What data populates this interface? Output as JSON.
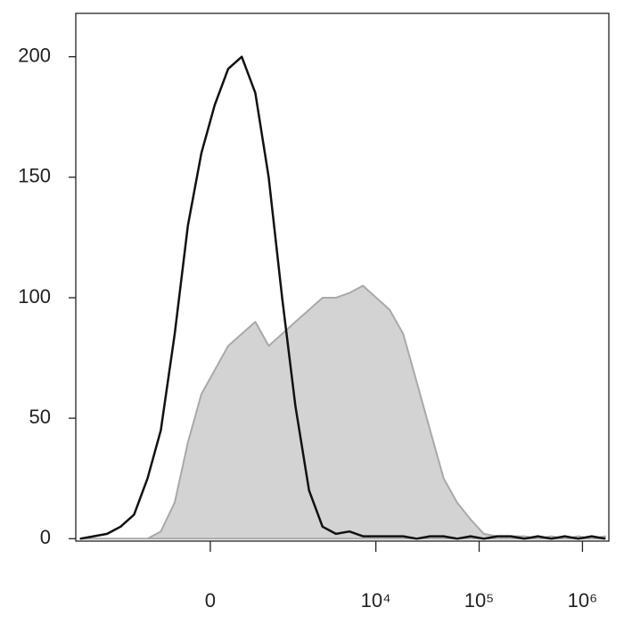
{
  "chart_data": {
    "type": "histogram-overlay",
    "x": [
      -4530,
      -3350,
      -2470,
      -1810,
      -1320,
      -950,
      -670,
      -440,
      -260,
      -100,
      50,
      205,
      380,
      590,
      850,
      1190,
      1630,
      2230,
      3030,
      4100,
      5540,
      7490,
      10100,
      13600,
      18400,
      24900,
      33500,
      45300,
      61200,
      82600,
      111000,
      150000,
      203000,
      274000,
      370000,
      500000,
      674000,
      910000,
      1230000,
      1660000
    ],
    "series": [
      {
        "color": "#a9a9a9",
        "fill": "#d3d3d3",
        "values": [
          0,
          0,
          0,
          0,
          0,
          0,
          3,
          15,
          40,
          60,
          70,
          80,
          85,
          90,
          80,
          85,
          90,
          95,
          100,
          100,
          102,
          105,
          100,
          95,
          85,
          65,
          45,
          25,
          15,
          8,
          2,
          1,
          1,
          1,
          0,
          1,
          0,
          1,
          0,
          1
        ]
      },
      {
        "color": "#111111",
        "values": [
          0,
          1,
          2,
          5,
          10,
          25,
          45,
          85,
          130,
          160,
          180,
          195,
          200,
          185,
          150,
          100,
          55,
          20,
          5,
          2,
          3,
          1,
          1,
          1,
          1,
          0,
          1,
          1,
          0,
          1,
          0,
          1,
          1,
          0,
          1,
          0,
          1,
          0,
          1,
          0
        ]
      }
    ],
    "xscale": "biexponential",
    "xlim": [
      -5000,
      1800000
    ],
    "xticks": [
      0,
      {
        "value": 10000,
        "label": "10⁴"
      },
      {
        "value": 100000,
        "label": "10⁵"
      },
      {
        "value": 1000000,
        "label": "10⁶"
      }
    ],
    "ylim": [
      -1,
      218
    ],
    "yticks": [
      0,
      50,
      100,
      150,
      200
    ]
  }
}
